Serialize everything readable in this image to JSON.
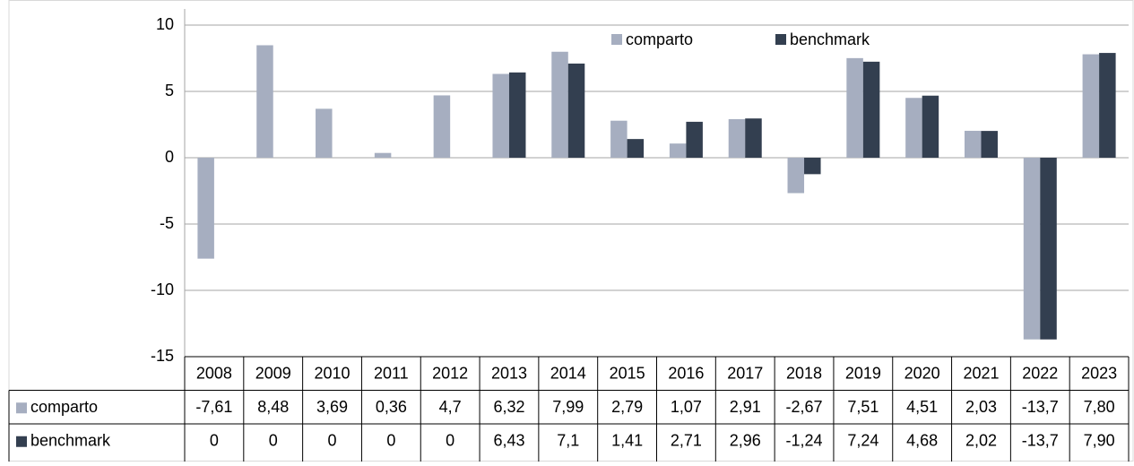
{
  "chart_data": {
    "type": "bar",
    "categories": [
      "2008",
      "2009",
      "2010",
      "2011",
      "2012",
      "2013",
      "2014",
      "2015",
      "2016",
      "2017",
      "2018",
      "2019",
      "2020",
      "2021",
      "2022",
      "2023"
    ],
    "series": [
      {
        "name": "comparto",
        "color": "#a6aec0",
        "values": [
          -7.61,
          8.48,
          3.69,
          0.36,
          4.7,
          6.32,
          7.99,
          2.79,
          1.07,
          2.91,
          -2.67,
          7.51,
          4.51,
          2.03,
          -13.7,
          7.8
        ],
        "value_labels": [
          "-7,61",
          "8,48",
          "3,69",
          "0,36",
          "4,7",
          "6,32",
          "7,99",
          "2,79",
          "1,07",
          "2,91",
          "-2,67",
          "7,51",
          "4,51",
          "2,03",
          "-13,7",
          "7,80"
        ]
      },
      {
        "name": "benchmark",
        "color": "#333f50",
        "values": [
          0,
          0,
          0,
          0,
          0,
          6.43,
          7.1,
          1.41,
          2.71,
          2.96,
          -1.24,
          7.24,
          4.68,
          2.02,
          -13.7,
          7.9
        ],
        "value_labels": [
          "0",
          "0",
          "0",
          "0",
          "0",
          "6,43",
          "7,1",
          "1,41",
          "2,71",
          "2,96",
          "-1,24",
          "7,24",
          "4,68",
          "2,02",
          "-13,7",
          "7,90"
        ]
      }
    ],
    "ylim": [
      -15,
      10
    ],
    "yticks": [
      -15,
      -10,
      -5,
      0,
      5,
      10
    ],
    "grid": true,
    "legend": "top",
    "data_table": true
  }
}
